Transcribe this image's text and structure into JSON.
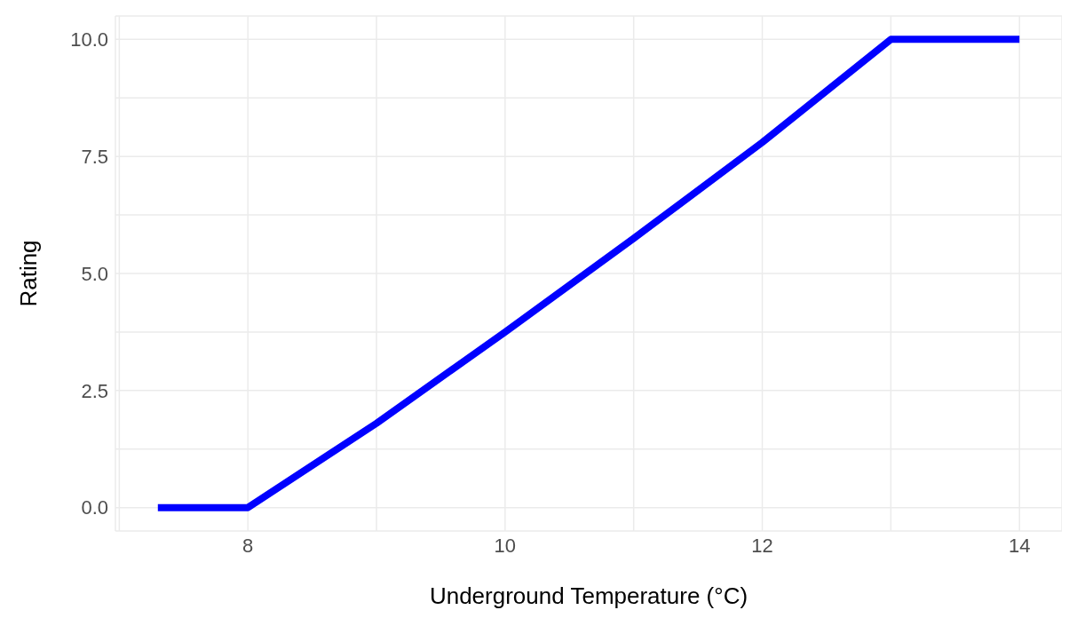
{
  "chart_data": {
    "type": "line",
    "xlabel": "Underground Temperature (°C)",
    "ylabel": "Rating",
    "x": [
      7.3,
      8,
      9,
      10,
      11,
      12,
      13,
      14
    ],
    "series": [
      {
        "color": "#0000ff",
        "values": [
          0,
          0,
          1.8,
          3.75,
          5.75,
          7.8,
          10,
          10
        ]
      }
    ],
    "xlim": [
      6.97,
      14.33
    ],
    "ylim": [
      -0.5,
      10.5
    ],
    "xticks": [
      {
        "value": 7,
        "label": null
      },
      8,
      {
        "value": 9,
        "label": null
      },
      10,
      {
        "value": 11,
        "label": null
      },
      12,
      {
        "value": 13,
        "label": null
      },
      14
    ],
    "yticks": [
      {
        "value": 0,
        "label": "0.0"
      },
      {
        "value": 1.25,
        "label": null
      },
      {
        "value": 2.5,
        "label": "2.5"
      },
      {
        "value": 3.75,
        "label": null
      },
      {
        "value": 5,
        "label": "5.0"
      },
      {
        "value": 6.25,
        "label": null
      },
      {
        "value": 7.5,
        "label": "7.5"
      },
      {
        "value": 8.75,
        "label": null
      },
      {
        "value": 10,
        "label": "10.0"
      }
    ],
    "grid": true,
    "legend": false,
    "marker": "none",
    "line_style": "solid"
  }
}
